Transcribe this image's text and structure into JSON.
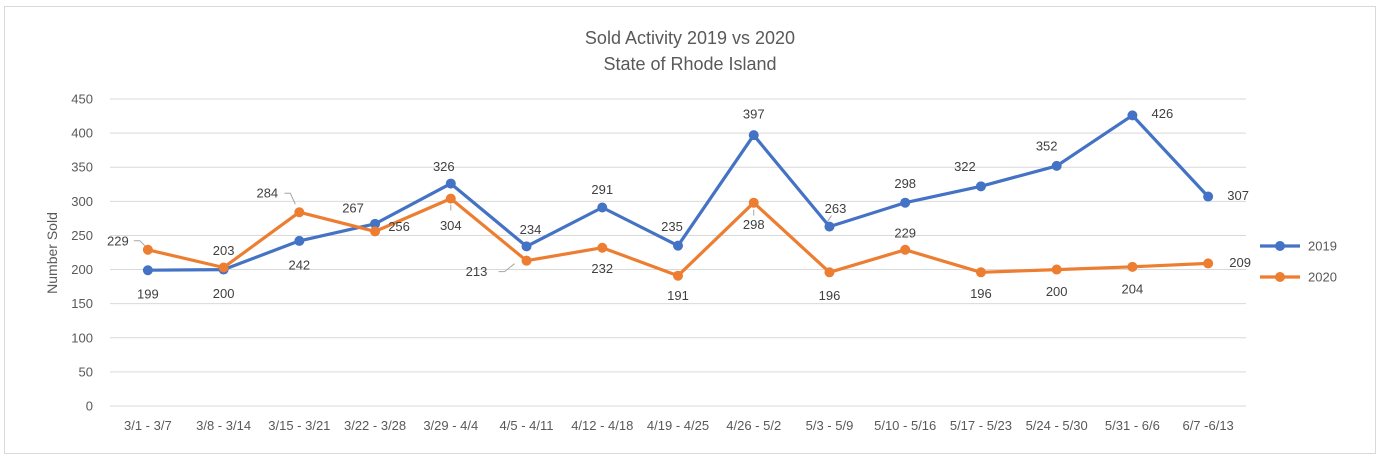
{
  "chart_data": {
    "type": "line",
    "title": "Sold Activity 2019 vs 2020",
    "subtitle": "State of Rhode Island",
    "xlabel": "",
    "ylabel": "Number Sold",
    "ylim": [
      0,
      450
    ],
    "yticks": [
      0,
      50,
      100,
      150,
      200,
      250,
      300,
      350,
      400,
      450
    ],
    "grid": true,
    "legend": "right",
    "categories": [
      "3/1 - 3/7",
      "3/8 - 3/14",
      "3/15 - 3/21",
      "3/22 - 3/28",
      "3/29 - 4/4",
      "4/5 - 4/11",
      "4/12 - 4/18",
      "4/19 - 4/25",
      "4/26 - 5/2",
      "5/3 - 5/9",
      "5/10 - 5/16",
      "5/17 - 5/23",
      "5/24 - 5/30",
      "5/31 - 6/6",
      "6/7 -6/13"
    ],
    "series": [
      {
        "name": "2019",
        "color": "#4472C4",
        "values": [
          199,
          200,
          242,
          267,
          326,
          234,
          291,
          235,
          397,
          263,
          298,
          322,
          352,
          426,
          307
        ]
      },
      {
        "name": "2020",
        "color": "#ED7D31",
        "values": [
          229,
          203,
          284,
          256,
          304,
          213,
          232,
          191,
          298,
          196,
          229,
          196,
          200,
          204,
          209
        ]
      }
    ]
  }
}
